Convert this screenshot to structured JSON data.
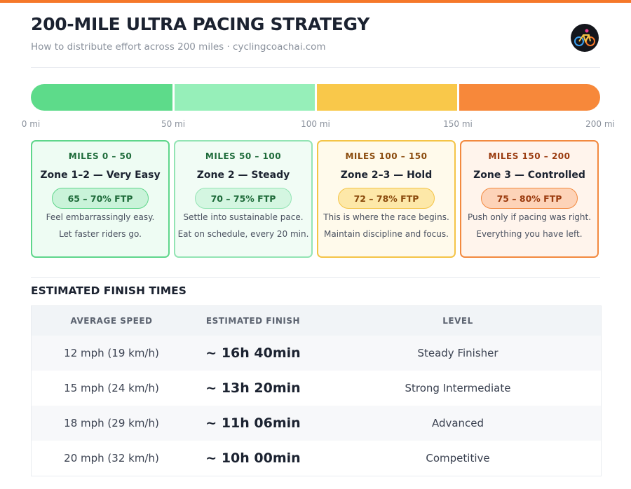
{
  "header": {
    "title": "200-MILE ULTRA PACING STRATEGY",
    "subtitle": "How to distribute effort across 200 miles · cyclingcoachai.com"
  },
  "scale": {
    "ticks": [
      {
        "value": 0,
        "label": "0 mi"
      },
      {
        "value": 50,
        "label": "50 mi"
      },
      {
        "value": 100,
        "label": "100 mi"
      },
      {
        "value": 150,
        "label": "150 mi"
      },
      {
        "value": 200,
        "label": "200 mi"
      }
    ]
  },
  "zones": [
    {
      "range": "MILES 0 – 50",
      "name": "Zone 1–2 — Very Easy",
      "ftp": "65 – 70% FTP",
      "lines": [
        "Feel embarrassingly easy.",
        "Let faster riders go."
      ],
      "color": "#5ddb8a",
      "border": "#5fd68b",
      "bg": "#eefcf3",
      "pill": "#c9f3d9",
      "accent": "#1e6b3a"
    },
    {
      "range": "MILES 50 – 100",
      "name": "Zone 2 — Steady",
      "ftp": "70 – 75% FTP",
      "lines": [
        "Settle into sustainable pace.",
        "Eat on schedule, every 20 min."
      ],
      "color": "#96efb9",
      "border": "#93e4b4",
      "bg": "#f1fcf5",
      "pill": "#d4f6e1",
      "accent": "#1e6b3a"
    },
    {
      "range": "MILES 100 – 150",
      "name": "Zone 2–3 — Hold",
      "ftp": "72 – 78% FTP",
      "lines": [
        "This is where the race begins.",
        "Maintain discipline and focus."
      ],
      "color": "#f9c84a",
      "border": "#f4c447",
      "bg": "#fffaeb",
      "pill": "#fde8a8",
      "accent": "#8a4a0c"
    },
    {
      "range": "MILES 150 – 200",
      "name": "Zone 3 — Controlled",
      "ftp": "75 – 80% FTP",
      "lines": [
        "Push only if pacing was right.",
        "Everything you have left."
      ],
      "color": "#f7883a",
      "border": "#f2893f",
      "bg": "#fff4ec",
      "pill": "#fdd3b8",
      "accent": "#9a3a0e"
    }
  ],
  "table": {
    "title": "ESTIMATED FINISH TIMES",
    "headers": [
      "AVERAGE SPEED",
      "ESTIMATED FINISH",
      "LEVEL"
    ],
    "rows": [
      [
        "12 mph (19 km/h)",
        "~ 16h 40min",
        "Steady Finisher"
      ],
      [
        "15 mph (24 km/h)",
        "~ 13h 20min",
        "Strong Intermediate"
      ],
      [
        "18 mph (29 km/h)",
        "~ 11h 06min",
        "Advanced"
      ],
      [
        "20 mph (32 km/h)",
        "~ 10h 00min",
        "Competitive"
      ]
    ]
  }
}
